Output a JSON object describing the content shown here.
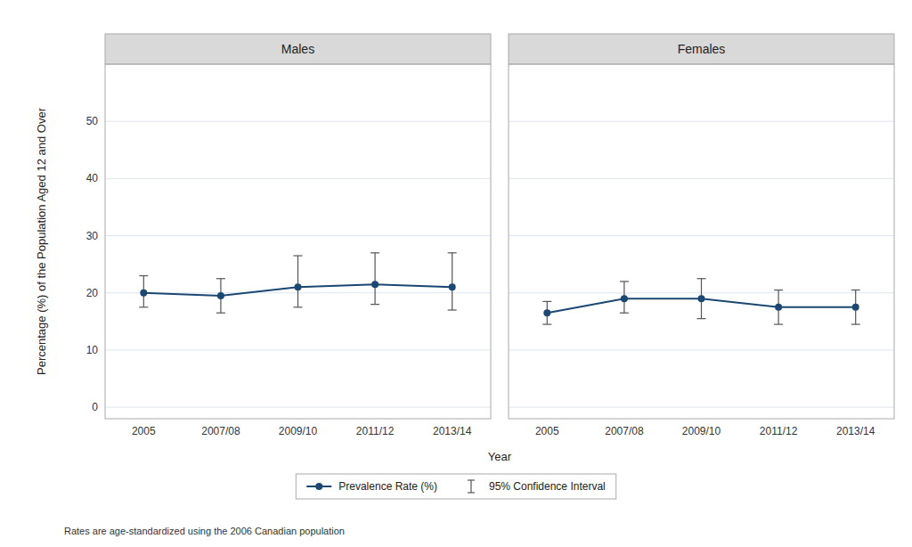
{
  "chart_data": [
    {
      "type": "line",
      "title": "Males",
      "x_label": "Year",
      "y_label": "Percentage (%) of the Population Aged 12 and Over",
      "annotation": "Rates are age-standardized using the 2006 Canadian population",
      "categories": [
        "2005",
        "2007/08",
        "2009/10",
        "2011/12",
        "2013/14"
      ],
      "series": [
        {
          "name": "Prevalence Rate (%)",
          "color": "#1a4872",
          "marker": "circle",
          "line_style": "solid",
          "values": [
            20.0,
            19.5,
            21.0,
            21.5,
            21.0
          ],
          "ci_lower": [
            17.5,
            16.5,
            17.5,
            18.0,
            17.0
          ],
          "ci_upper": [
            23.0,
            22.5,
            26.5,
            27.0,
            27.0
          ],
          "ci_label": "95% Confidence Interval",
          "ci_color": "#555555"
        }
      ],
      "ylim": [
        -2,
        60
      ],
      "yticks": [
        0,
        10,
        20,
        30,
        40,
        50
      ],
      "grid": true,
      "legend": "bottom"
    },
    {
      "type": "line",
      "title": "Females",
      "categories": [
        "2005",
        "2007/08",
        "2009/10",
        "2011/12",
        "2013/14"
      ],
      "series": [
        {
          "color": "#1a4872",
          "marker": "circle",
          "line_style": "solid",
          "values": [
            16.5,
            19.0,
            19.0,
            17.5,
            17.5
          ],
          "ci_lower": [
            14.5,
            16.5,
            15.5,
            14.5,
            14.5
          ],
          "ci_upper": [
            18.5,
            22.0,
            22.5,
            20.5,
            20.5
          ],
          "ci_color": "#555555"
        }
      ],
      "ylim": [
        -2,
        60
      ],
      "yticks": [
        0,
        10,
        20,
        30,
        40,
        50
      ],
      "grid": true,
      "tick_labels": "x"
    }
  ]
}
